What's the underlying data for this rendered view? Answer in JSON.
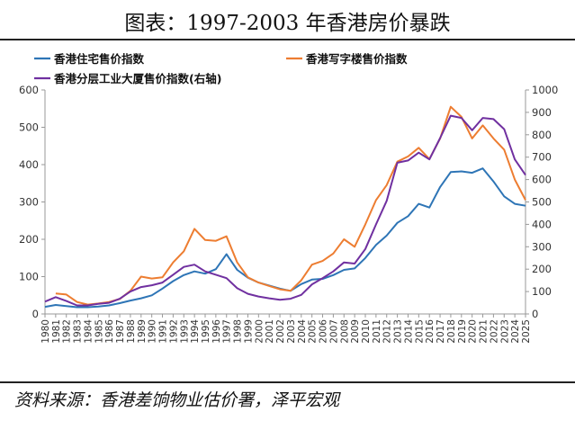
{
  "header": {
    "title": "图表：1997-2003 年香港房价暴跌"
  },
  "footer": {
    "source": "资料来源：香港差饷物业估价署，泽平宏观"
  },
  "chart_data": {
    "type": "line",
    "title": "图表：1997-2003 年香港房价暴跌",
    "x": [
      1980,
      1981,
      1982,
      1983,
      1984,
      1985,
      1986,
      1987,
      1988,
      1989,
      1990,
      1991,
      1992,
      1993,
      1994,
      1995,
      1996,
      1997,
      1998,
      1999,
      2000,
      2001,
      2002,
      2003,
      2004,
      2005,
      2006,
      2007,
      2008,
      2009,
      2010,
      2011,
      2012,
      2013,
      2014,
      2015,
      2016,
      2017,
      2018,
      2019,
      2020,
      2021,
      2022,
      2023,
      2024,
      2025
    ],
    "x_tick_labels": [
      "1980",
      "1981",
      "1982",
      "1983",
      "1984",
      "1985",
      "1986",
      "1987",
      "1988",
      "1989",
      "1990",
      "1991",
      "1992",
      "1993",
      "1994",
      "1995",
      "1996",
      "1997",
      "1998",
      "1999",
      "2000",
      "2001",
      "2002",
      "2003",
      "2004",
      "2005",
      "2006",
      "2007",
      "2008",
      "2009",
      "2010",
      "2011",
      "2012",
      "2013",
      "2014",
      "2015",
      "2016",
      "2017",
      "2018",
      "2019",
      "2020",
      "2021",
      "2022",
      "2023",
      "2024",
      "2025"
    ],
    "y_left": {
      "range": [
        0,
        600
      ],
      "ticks": [
        0,
        100,
        200,
        300,
        400,
        500,
        600
      ]
    },
    "y_right": {
      "range": [
        0,
        1000
      ],
      "ticks": [
        0,
        100,
        200,
        300,
        400,
        500,
        600,
        700,
        800,
        900,
        1000
      ]
    },
    "grid": false,
    "legend_position": "top",
    "series": [
      {
        "name": "香港住宅售价指数",
        "axis": "left",
        "color": "#2E75B6",
        "values": [
          19,
          24,
          21,
          18,
          18,
          20,
          23,
          29,
          36,
          42,
          50,
          68,
          88,
          104,
          114,
          108,
          120,
          160,
          118,
          97,
          84,
          76,
          68,
          62,
          80,
          92,
          94,
          104,
          118,
          122,
          150,
          185,
          210,
          244,
          262,
          295,
          285,
          340,
          380,
          382,
          378,
          390,
          355,
          315,
          295,
          290
        ]
      },
      {
        "name": "香港写字楼售价指数",
        "axis": "left",
        "color": "#ED7D31",
        "values": [
          null,
          55,
          52,
          32,
          25,
          28,
          32,
          40,
          62,
          100,
          95,
          98,
          138,
          168,
          228,
          198,
          196,
          208,
          138,
          98,
          84,
          75,
          66,
          62,
          90,
          132,
          142,
          162,
          200,
          180,
          240,
          305,
          345,
          408,
          422,
          445,
          415,
          470,
          555,
          528,
          470,
          505,
          470,
          440,
          360,
          305
        ]
      },
      {
        "name": "香港分层工业大厦售价指数(右轴)",
        "axis": "right",
        "color": "#7030A0",
        "values": [
          55,
          75,
          58,
          38,
          38,
          45,
          50,
          68,
          100,
          120,
          128,
          140,
          175,
          210,
          220,
          190,
          175,
          160,
          115,
          90,
          78,
          70,
          63,
          68,
          85,
          132,
          160,
          190,
          230,
          225,
          290,
          400,
          505,
          675,
          685,
          720,
          690,
          785,
          885,
          875,
          820,
          875,
          870,
          825,
          690,
          620
        ]
      }
    ]
  }
}
